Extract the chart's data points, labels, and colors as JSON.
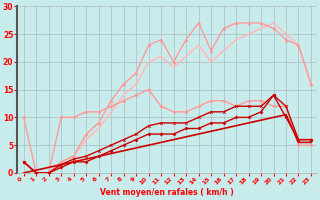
{
  "title": "",
  "xlabel": "Vent moyen/en rafales ( km/h )",
  "ylabel": "",
  "xlim": [
    -0.5,
    23.5
  ],
  "ylim": [
    0,
    30
  ],
  "yticks": [
    0,
    5,
    10,
    15,
    20,
    25,
    30
  ],
  "xticks": [
    0,
    1,
    2,
    3,
    4,
    5,
    6,
    7,
    8,
    9,
    10,
    11,
    12,
    13,
    14,
    15,
    16,
    17,
    18,
    19,
    20,
    21,
    22,
    23
  ],
  "background_color": "#c8ecec",
  "grid_color": "#999999",
  "lines": [
    {
      "x": [
        0,
        1,
        2,
        3,
        4,
        5,
        6,
        7,
        8,
        9,
        10,
        11,
        12,
        13,
        14,
        15,
        16,
        17,
        18,
        19,
        20,
        21,
        22,
        23
      ],
      "y": [
        0,
        0.5,
        1,
        1.5,
        2,
        2.5,
        3,
        3.5,
        4,
        4.5,
        5,
        5.5,
        6,
        6.5,
        7,
        7.5,
        8,
        8.5,
        9,
        9.5,
        10,
        10.5,
        5.5,
        5.5
      ],
      "color": "#cc0000",
      "lw": 1.2,
      "marker": null,
      "ms": 0,
      "zorder": 4
    },
    {
      "x": [
        0,
        1,
        2,
        3,
        4,
        5,
        6,
        7,
        8,
        9,
        10,
        11,
        12,
        13,
        14,
        15,
        16,
        17,
        18,
        19,
        20,
        21,
        22,
        23
      ],
      "y": [
        2,
        0,
        0,
        1,
        2,
        2,
        3,
        4,
        5,
        6,
        7,
        7,
        7,
        8,
        8,
        9,
        9,
        10,
        10,
        11,
        14,
        10,
        6,
        6
      ],
      "color": "#cc0000",
      "lw": 1.0,
      "marker": "D",
      "ms": 1.5,
      "zorder": 5
    },
    {
      "x": [
        0,
        1,
        2,
        3,
        4,
        5,
        6,
        7,
        8,
        9,
        10,
        11,
        12,
        13,
        14,
        15,
        16,
        17,
        18,
        19,
        20,
        21,
        22,
        23
      ],
      "y": [
        2,
        0,
        0,
        1.5,
        2.5,
        3,
        4,
        5,
        6,
        7,
        8.5,
        9,
        9,
        9,
        10,
        11,
        11,
        12,
        12,
        12,
        14,
        12,
        6,
        6
      ],
      "color": "#cc0000",
      "lw": 1.0,
      "marker": "x",
      "ms": 2,
      "zorder": 5
    },
    {
      "x": [
        0,
        1,
        2,
        3,
        4,
        5,
        6,
        7,
        8,
        9,
        10,
        11,
        12,
        13,
        14,
        15,
        16,
        17,
        18,
        19,
        20,
        21,
        22,
        23
      ],
      "y": [
        10,
        0,
        0,
        10,
        10,
        11,
        11,
        12,
        13,
        14,
        15,
        12,
        11,
        11,
        12,
        13,
        13,
        12,
        13,
        13,
        12,
        12,
        5,
        5
      ],
      "color": "#ff9999",
      "lw": 1.0,
      "marker": "D",
      "ms": 1.5,
      "zorder": 3
    },
    {
      "x": [
        0,
        1,
        2,
        3,
        4,
        5,
        6,
        7,
        8,
        9,
        10,
        11,
        12,
        13,
        14,
        15,
        16,
        17,
        18,
        19,
        20,
        21,
        22,
        23
      ],
      "y": [
        2,
        0,
        0,
        2,
        3,
        7,
        9,
        13,
        16,
        18,
        23,
        24,
        20,
        24,
        27,
        22,
        26,
        27,
        27,
        27,
        26,
        24,
        23,
        16
      ],
      "color": "#ff9999",
      "lw": 1.0,
      "marker": "^",
      "ms": 2,
      "zorder": 3
    },
    {
      "x": [
        0,
        1,
        2,
        3,
        4,
        5,
        6,
        7,
        8,
        9,
        10,
        11,
        12,
        13,
        14,
        15,
        16,
        17,
        18,
        19,
        20,
        21,
        22,
        23
      ],
      "y": [
        2,
        0,
        0,
        2,
        3,
        6,
        8,
        11,
        14,
        16,
        20,
        21,
        19,
        21,
        23,
        20,
        22,
        24,
        25,
        26,
        27,
        25,
        23,
        16
      ],
      "color": "#ffbbbb",
      "lw": 1.2,
      "marker": null,
      "ms": 0,
      "zorder": 2
    }
  ]
}
